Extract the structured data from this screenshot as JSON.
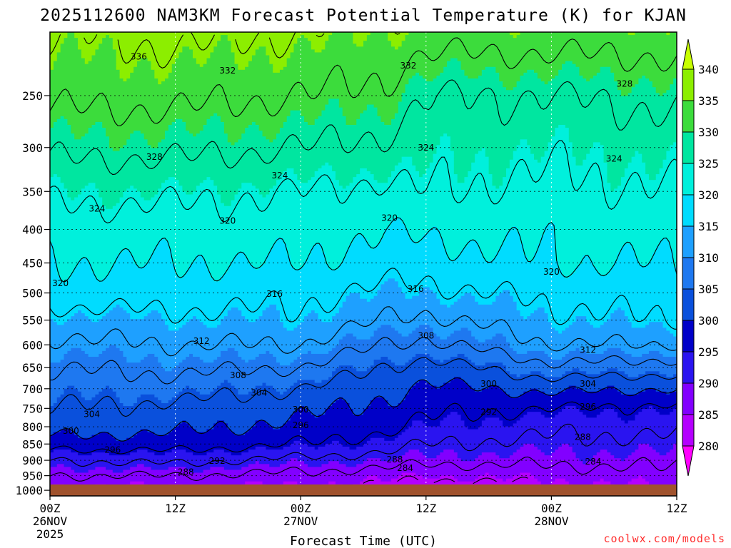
{
  "chart_data": {
    "type": "heatmap",
    "title": "2025112600 NAM3KM Forecast Potential Temperature (K) for KJAN",
    "xlabel": "Forecast Time (UTC)",
    "ylabel": "",
    "credit": "coolwx.com/models",
    "x_range_hours": [
      0,
      60
    ],
    "x_ticks": [
      {
        "hour": 0,
        "label": "00Z",
        "sub1": "26NOV",
        "sub2": "2025"
      },
      {
        "hour": 12,
        "label": "12Z",
        "sub1": "",
        "sub2": ""
      },
      {
        "hour": 24,
        "label": "00Z",
        "sub1": "27NOV",
        "sub2": ""
      },
      {
        "hour": 36,
        "label": "12Z",
        "sub1": "",
        "sub2": ""
      },
      {
        "hour": 48,
        "label": "00Z",
        "sub1": "28NOV",
        "sub2": ""
      },
      {
        "hour": 60,
        "label": "12Z",
        "sub1": "",
        "sub2": ""
      }
    ],
    "y_axis": "pressure (hPa), log scale, inverted",
    "y_range": [
      1020,
      200
    ],
    "y_ticks": [
      250,
      300,
      350,
      400,
      450,
      500,
      550,
      600,
      650,
      700,
      750,
      800,
      850,
      900,
      950,
      1000
    ],
    "grid": true,
    "colorbar": {
      "levels": [
        280,
        285,
        290,
        295,
        300,
        305,
        310,
        315,
        320,
        325,
        330,
        335,
        340
      ],
      "colors": [
        "#ff00ff",
        "#b400ff",
        "#8200ff",
        "#2a14f0",
        "#0000c8",
        "#0a50dc",
        "#1e78f0",
        "#1ea0ff",
        "#00dcff",
        "#00f0dc",
        "#00e6a0",
        "#3cdc3c",
        "#8cee00",
        "#c8ff00"
      ]
    },
    "ground_color": "#a0522d",
    "contour_interval": 4,
    "profiles": [
      {
        "hour": 0,
        "levels": [
          [
            1000,
            284
          ],
          [
            950,
            288
          ],
          [
            900,
            292
          ],
          [
            850,
            298
          ],
          [
            800,
            302
          ],
          [
            750,
            304
          ],
          [
            700,
            306
          ],
          [
            650,
            308
          ],
          [
            600,
            311
          ],
          [
            550,
            314
          ],
          [
            500,
            318
          ],
          [
            450,
            320
          ],
          [
            400,
            322
          ],
          [
            350,
            325
          ],
          [
            300,
            329
          ],
          [
            250,
            333
          ],
          [
            200,
            336
          ]
        ]
      },
      {
        "hour": 12,
        "levels": [
          [
            1000,
            284
          ],
          [
            950,
            288
          ],
          [
            900,
            293
          ],
          [
            850,
            298
          ],
          [
            800,
            301
          ],
          [
            750,
            303
          ],
          [
            700,
            306
          ],
          [
            650,
            309
          ],
          [
            600,
            312
          ],
          [
            550,
            315
          ],
          [
            500,
            318
          ],
          [
            450,
            320
          ],
          [
            400,
            322
          ],
          [
            350,
            325
          ],
          [
            300,
            329
          ],
          [
            250,
            333
          ],
          [
            200,
            337
          ]
        ]
      },
      {
        "hour": 24,
        "levels": [
          [
            1000,
            284
          ],
          [
            950,
            287
          ],
          [
            900,
            291
          ],
          [
            850,
            296
          ],
          [
            800,
            299
          ],
          [
            750,
            301
          ],
          [
            700,
            304
          ],
          [
            650,
            308
          ],
          [
            600,
            312
          ],
          [
            550,
            315
          ],
          [
            500,
            317
          ],
          [
            450,
            320
          ],
          [
            400,
            322
          ],
          [
            350,
            324
          ],
          [
            300,
            328
          ],
          [
            250,
            332
          ],
          [
            200,
            336
          ]
        ]
      },
      {
        "hour": 32,
        "levels": [
          [
            1000,
            283
          ],
          [
            950,
            286
          ],
          [
            900,
            290
          ],
          [
            850,
            294
          ],
          [
            800,
            297
          ],
          [
            750,
            299
          ],
          [
            700,
            301
          ],
          [
            650,
            304
          ],
          [
            600,
            308
          ],
          [
            550,
            312
          ],
          [
            500,
            315
          ],
          [
            450,
            318
          ],
          [
            400,
            320
          ],
          [
            350,
            323
          ],
          [
            300,
            327
          ],
          [
            250,
            331
          ],
          [
            200,
            335
          ]
        ]
      },
      {
        "hour": 36,
        "levels": [
          [
            1000,
            281
          ],
          [
            950,
            285
          ],
          [
            900,
            289
          ],
          [
            850,
            292
          ],
          [
            800,
            295
          ],
          [
            750,
            297
          ],
          [
            700,
            299
          ],
          [
            650,
            302
          ],
          [
            600,
            307
          ],
          [
            550,
            311
          ],
          [
            500,
            315
          ],
          [
            450,
            318
          ],
          [
            400,
            321
          ],
          [
            350,
            324
          ],
          [
            300,
            326
          ],
          [
            250,
            328
          ],
          [
            200,
            334
          ]
        ]
      },
      {
        "hour": 48,
        "levels": [
          [
            1000,
            283
          ],
          [
            950,
            286
          ],
          [
            900,
            289
          ],
          [
            850,
            291
          ],
          [
            800,
            293
          ],
          [
            750,
            296
          ],
          [
            700,
            301
          ],
          [
            650,
            307
          ],
          [
            600,
            312
          ],
          [
            550,
            315
          ],
          [
            500,
            317
          ],
          [
            450,
            320
          ],
          [
            400,
            321
          ],
          [
            350,
            323
          ],
          [
            300,
            325
          ],
          [
            250,
            328
          ],
          [
            200,
            334
          ]
        ]
      },
      {
        "hour": 60,
        "levels": [
          [
            1000,
            285
          ],
          [
            950,
            287
          ],
          [
            900,
            289
          ],
          [
            850,
            291
          ],
          [
            800,
            293
          ],
          [
            750,
            295
          ],
          [
            700,
            300
          ],
          [
            650,
            306
          ],
          [
            600,
            312
          ],
          [
            550,
            316
          ],
          [
            500,
            318
          ],
          [
            450,
            320
          ],
          [
            400,
            322
          ],
          [
            350,
            324
          ],
          [
            300,
            326
          ],
          [
            250,
            329
          ],
          [
            200,
            334
          ]
        ]
      }
    ],
    "contour_labels": [
      {
        "value": "336",
        "hour": 8.5,
        "p": 218
      },
      {
        "value": "332",
        "hour": 17,
        "p": 229
      },
      {
        "value": "332",
        "hour": 34.3,
        "p": 225
      },
      {
        "value": "328",
        "hour": 55,
        "p": 240
      },
      {
        "value": "328",
        "hour": 10,
        "p": 310
      },
      {
        "value": "324",
        "hour": 36,
        "p": 300
      },
      {
        "value": "324",
        "hour": 54,
        "p": 312
      },
      {
        "value": "324",
        "hour": 22,
        "p": 331
      },
      {
        "value": "324",
        "hour": 4.5,
        "p": 372
      },
      {
        "value": "320",
        "hour": 17,
        "p": 388
      },
      {
        "value": "320",
        "hour": 32.5,
        "p": 384
      },
      {
        "value": "320",
        "hour": 1,
        "p": 483
      },
      {
        "value": "320",
        "hour": 48,
        "p": 464
      },
      {
        "value": "316",
        "hour": 21.5,
        "p": 502
      },
      {
        "value": "316",
        "hour": 35,
        "p": 493
      },
      {
        "value": "312",
        "hour": 14.5,
        "p": 592
      },
      {
        "value": "312",
        "hour": 51.5,
        "p": 611
      },
      {
        "value": "308",
        "hour": 36,
        "p": 581
      },
      {
        "value": "308",
        "hour": 18,
        "p": 668
      },
      {
        "value": "304",
        "hour": 20,
        "p": 710
      },
      {
        "value": "304",
        "hour": 4,
        "p": 766
      },
      {
        "value": "304",
        "hour": 51.5,
        "p": 688
      },
      {
        "value": "300",
        "hour": 42,
        "p": 688
      },
      {
        "value": "300",
        "hour": 24,
        "p": 753
      },
      {
        "value": "300",
        "hour": 2,
        "p": 812
      },
      {
        "value": "296",
        "hour": 24,
        "p": 796
      },
      {
        "value": "296",
        "hour": 51.5,
        "p": 746
      },
      {
        "value": "296",
        "hour": 6,
        "p": 868
      },
      {
        "value": "292",
        "hour": 42,
        "p": 760
      },
      {
        "value": "292",
        "hour": 16,
        "p": 902
      },
      {
        "value": "288",
        "hour": 51,
        "p": 829
      },
      {
        "value": "288",
        "hour": 33,
        "p": 898
      },
      {
        "value": "288",
        "hour": 13,
        "p": 938
      },
      {
        "value": "284",
        "hour": 34,
        "p": 925
      },
      {
        "value": "284",
        "hour": 52,
        "p": 904
      }
    ]
  }
}
